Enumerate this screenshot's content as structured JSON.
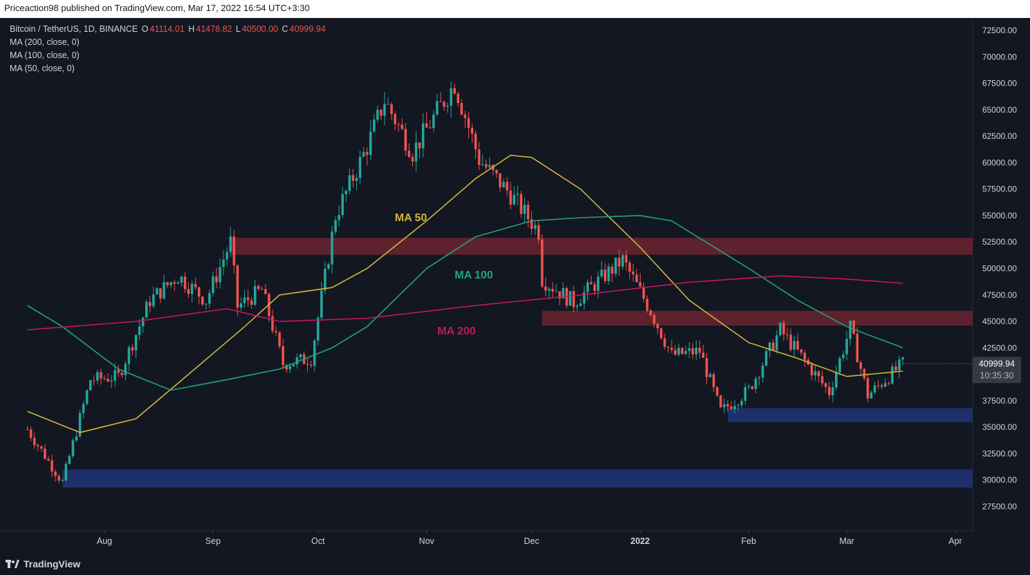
{
  "publisher_line": "Priceaction98 published on TradingView.com, Mar 17, 2022 16:54 UTC+3:30",
  "legend": {
    "symbol": "Bitcoin / TetherUS, 1D, BINANCE",
    "open_label": "O",
    "open": "41114.01",
    "high_label": "H",
    "high": "41478.82",
    "low_label": "L",
    "low": "40500.00",
    "close_label": "C",
    "close": "40999.94",
    "indicators": [
      "MA (200, close, 0)",
      "MA (100, close, 0)",
      "MA (50, close, 0)"
    ]
  },
  "last_price": {
    "value": "40999.94",
    "countdown": "10:35:30"
  },
  "branding": "TradingView",
  "colors": {
    "background": "#131722",
    "up": "#26a69a",
    "down": "#ef5350",
    "ma50": "#d4b43a",
    "ma100": "#1fa67a",
    "ma200": "#c2185b",
    "resistance_zone": "#6b2430",
    "support_zone": "#1f3373"
  },
  "chart_data": {
    "type": "candlestick",
    "x_ticks": [
      {
        "label": "Aug",
        "date": "2021-08-01"
      },
      {
        "label": "Sep",
        "date": "2021-09-01"
      },
      {
        "label": "Oct",
        "date": "2021-10-01"
      },
      {
        "label": "Nov",
        "date": "2021-11-01"
      },
      {
        "label": "Dec",
        "date": "2021-12-01"
      },
      {
        "label": "2022",
        "date": "2022-01-01"
      },
      {
        "label": "Feb",
        "date": "2022-02-01"
      },
      {
        "label": "Mar",
        "date": "2022-03-01"
      },
      {
        "label": "Apr",
        "date": "2022-04-01"
      }
    ],
    "y_ticks": [
      "72500.00",
      "70000.00",
      "67500.00",
      "65000.00",
      "62500.00",
      "60000.00",
      "57500.00",
      "55000.00",
      "52500.00",
      "50000.00",
      "47500.00",
      "45000.00",
      "42500.00",
      "37500.00",
      "35000.00",
      "32500.00",
      "30000.00",
      "27500.00"
    ],
    "ylim": [
      26000,
      74500
    ],
    "x_range": [
      "2021-07-10",
      "2022-04-10"
    ],
    "price_keypoints": [
      {
        "date": "2021-07-10",
        "price": 34800
      },
      {
        "date": "2021-07-20",
        "price": 29800
      },
      {
        "date": "2021-07-28",
        "price": 39500
      },
      {
        "date": "2021-08-05",
        "price": 39800
      },
      {
        "date": "2021-08-14",
        "price": 47000
      },
      {
        "date": "2021-08-22",
        "price": 49300
      },
      {
        "date": "2021-08-30",
        "price": 47000
      },
      {
        "date": "2021-09-06",
        "price": 52500
      },
      {
        "date": "2021-09-08",
        "price": 46400
      },
      {
        "date": "2021-09-15",
        "price": 48000
      },
      {
        "date": "2021-09-21",
        "price": 41000
      },
      {
        "date": "2021-09-29",
        "price": 41500
      },
      {
        "date": "2021-10-06",
        "price": 55000
      },
      {
        "date": "2021-10-15",
        "price": 61500
      },
      {
        "date": "2021-10-20",
        "price": 65900
      },
      {
        "date": "2021-10-28",
        "price": 61000
      },
      {
        "date": "2021-11-09",
        "price": 67500
      },
      {
        "date": "2021-11-16",
        "price": 60300
      },
      {
        "date": "2021-11-25",
        "price": 57000
      },
      {
        "date": "2021-12-03",
        "price": 53500
      },
      {
        "date": "2021-12-04",
        "price": 49000
      },
      {
        "date": "2021-12-13",
        "price": 46800
      },
      {
        "date": "2021-12-27",
        "price": 50800
      },
      {
        "date": "2022-01-04",
        "price": 46000
      },
      {
        "date": "2022-01-10",
        "price": 41800
      },
      {
        "date": "2022-01-18",
        "price": 42200
      },
      {
        "date": "2022-01-24",
        "price": 36500
      },
      {
        "date": "2022-02-01",
        "price": 38500
      },
      {
        "date": "2022-02-10",
        "price": 44200
      },
      {
        "date": "2022-02-24",
        "price": 38300
      },
      {
        "date": "2022-03-02",
        "price": 44400
      },
      {
        "date": "2022-03-07",
        "price": 38000
      },
      {
        "date": "2022-03-17",
        "price": 40999.94
      }
    ],
    "moving_averages": [
      {
        "name": "MA 50",
        "label": "MA 50",
        "points": [
          {
            "date": "2021-07-10",
            "price": 36500
          },
          {
            "date": "2021-07-25",
            "price": 34500
          },
          {
            "date": "2021-08-10",
            "price": 35800
          },
          {
            "date": "2021-08-25",
            "price": 40000
          },
          {
            "date": "2021-09-10",
            "price": 44500
          },
          {
            "date": "2021-09-20",
            "price": 47500
          },
          {
            "date": "2021-10-05",
            "price": 48200
          },
          {
            "date": "2021-10-15",
            "price": 50000
          },
          {
            "date": "2021-11-01",
            "price": 54500
          },
          {
            "date": "2021-11-15",
            "price": 58500
          },
          {
            "date": "2021-11-25",
            "price": 60700
          },
          {
            "date": "2021-12-01",
            "price": 60500
          },
          {
            "date": "2021-12-15",
            "price": 57500
          },
          {
            "date": "2022-01-01",
            "price": 52000
          },
          {
            "date": "2022-01-15",
            "price": 47000
          },
          {
            "date": "2022-02-01",
            "price": 43000
          },
          {
            "date": "2022-02-15",
            "price": 41500
          },
          {
            "date": "2022-03-01",
            "price": 39800
          },
          {
            "date": "2022-03-17",
            "price": 40300
          }
        ]
      },
      {
        "name": "MA 100",
        "label": "MA 100",
        "points": [
          {
            "date": "2021-07-10",
            "price": 46500
          },
          {
            "date": "2021-07-20",
            "price": 44500
          },
          {
            "date": "2021-08-05",
            "price": 40500
          },
          {
            "date": "2021-08-20",
            "price": 38500
          },
          {
            "date": "2021-09-05",
            "price": 39500
          },
          {
            "date": "2021-09-20",
            "price": 40500
          },
          {
            "date": "2021-10-05",
            "price": 42500
          },
          {
            "date": "2021-10-15",
            "price": 44500
          },
          {
            "date": "2021-11-01",
            "price": 50000
          },
          {
            "date": "2021-11-15",
            "price": 53000
          },
          {
            "date": "2021-12-01",
            "price": 54500
          },
          {
            "date": "2021-12-15",
            "price": 54800
          },
          {
            "date": "2022-01-01",
            "price": 55000
          },
          {
            "date": "2022-01-10",
            "price": 54500
          },
          {
            "date": "2022-02-01",
            "price": 50000
          },
          {
            "date": "2022-02-15",
            "price": 47000
          },
          {
            "date": "2022-03-01",
            "price": 44500
          },
          {
            "date": "2022-03-17",
            "price": 42500
          }
        ]
      },
      {
        "name": "MA 200",
        "label": "MA 200",
        "points": [
          {
            "date": "2021-07-10",
            "price": 44200
          },
          {
            "date": "2021-08-10",
            "price": 45000
          },
          {
            "date": "2021-09-05",
            "price": 46200
          },
          {
            "date": "2021-09-20",
            "price": 45000
          },
          {
            "date": "2021-10-15",
            "price": 45300
          },
          {
            "date": "2021-11-15",
            "price": 46500
          },
          {
            "date": "2021-12-15",
            "price": 47500
          },
          {
            "date": "2022-01-15",
            "price": 48700
          },
          {
            "date": "2022-02-10",
            "price": 49300
          },
          {
            "date": "2022-03-01",
            "price": 49000
          },
          {
            "date": "2022-03-17",
            "price": 48600
          }
        ]
      }
    ],
    "zones": [
      {
        "kind": "resistance",
        "from": "2021-09-06",
        "price_low": 51300,
        "price_high": 52900
      },
      {
        "kind": "resistance",
        "from": "2021-12-04",
        "price_low": 44600,
        "price_high": 46000
      },
      {
        "kind": "support",
        "from": "2022-01-26",
        "price_low": 35500,
        "price_high": 36800
      },
      {
        "kind": "support",
        "from": "2021-07-20",
        "price_low": 29300,
        "price_high": 31000
      }
    ]
  }
}
